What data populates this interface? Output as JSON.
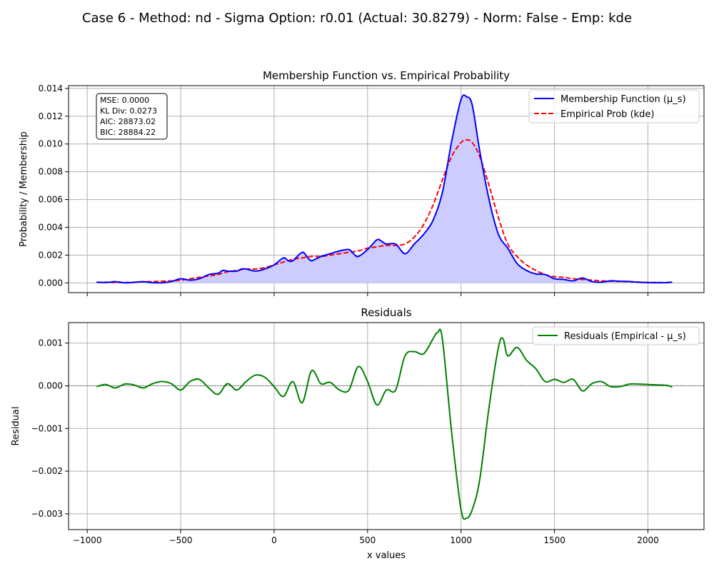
{
  "suptitle": "Case 6 - Method: nd - Sigma Option: r0.01 (Actual: 30.8279) - Norm: False - Emp: kde",
  "colors": {
    "membership": "#0000ff",
    "membership_fill": "#ccccff",
    "empirical": "#ff0000",
    "residuals": "#008000",
    "zero_line": "#808080",
    "grid": "#b0b0b0"
  },
  "chart_data": [
    {
      "type": "line",
      "title": "Membership Function vs. Empirical Probability",
      "xlabel": "",
      "ylabel": "Probability / Membership",
      "xlim": [
        -1100,
        2300
      ],
      "ylim": [
        -0.0007,
        0.0142
      ],
      "xticks": [
        -1000,
        -500,
        0,
        500,
        1000,
        1500,
        2000
      ],
      "yticks": [
        0.0,
        0.002,
        0.004,
        0.006,
        0.008,
        0.01,
        0.012,
        0.014
      ],
      "ytick_labels": [
        "0.000",
        "0.002",
        "0.004",
        "0.006",
        "0.008",
        "0.010",
        "0.012",
        "0.014"
      ],
      "grid": true,
      "legend_position": "top-right",
      "stats": [
        "MSE: 0.0000",
        "KL Div: 0.0273",
        "AIC: 28873.02",
        "BIC: 28884.22"
      ],
      "series": [
        {
          "name": "Membership Function (μ_s)",
          "style": "solid",
          "x": [
            -950,
            -900,
            -850,
            -800,
            -750,
            -700,
            -650,
            -600,
            -550,
            -500,
            -450,
            -400,
            -350,
            -300,
            -275,
            -250,
            -200,
            -175,
            -150,
            -100,
            -50,
            0,
            50,
            75,
            100,
            150,
            175,
            200,
            250,
            300,
            350,
            400,
            425,
            450,
            500,
            550,
            575,
            600,
            650,
            700,
            750,
            800,
            850,
            900,
            950,
            1000,
            1030,
            1060,
            1100,
            1150,
            1200,
            1250,
            1300,
            1350,
            1400,
            1450,
            1500,
            1550,
            1600,
            1650,
            1700,
            1750,
            1800,
            1850,
            1900,
            1950,
            2000,
            2050,
            2100,
            2130
          ],
          "y": [
            5e-05,
            3e-05,
            9e-05,
            1e-05,
            4e-05,
            9e-05,
            2e-05,
            1e-05,
            0.0001,
            0.0003,
            0.0002,
            0.0003,
            0.0006,
            0.0007,
            0.0009,
            0.00085,
            0.00085,
            0.001,
            0.001,
            0.00085,
            0.001,
            0.0013,
            0.0018,
            0.0016,
            0.0016,
            0.0022,
            0.0019,
            0.0016,
            0.0019,
            0.0021,
            0.0023,
            0.0024,
            0.0021,
            0.0019,
            0.0024,
            0.0031,
            0.003,
            0.0028,
            0.0028,
            0.0021,
            0.0028,
            0.0035,
            0.0045,
            0.0065,
            0.0102,
            0.0132,
            0.0134,
            0.0128,
            0.0095,
            0.006,
            0.0035,
            0.0025,
            0.0014,
            0.0009,
            0.00065,
            0.0006,
            0.0003,
            0.00025,
            0.00015,
            0.00035,
            0.0001,
            5e-05,
            0.00015,
            0.00012,
            0.0001,
            5e-05,
            2e-05,
            1e-05,
            2e-05,
            5e-05
          ]
        },
        {
          "name": "Empirical Prob (kde)",
          "style": "dashed",
          "x": [
            -950,
            -900,
            -850,
            -800,
            -750,
            -700,
            -650,
            -600,
            -550,
            -500,
            -450,
            -400,
            -350,
            -300,
            -250,
            -200,
            -150,
            -100,
            -50,
            0,
            50,
            100,
            150,
            200,
            250,
            300,
            350,
            400,
            450,
            500,
            550,
            600,
            650,
            700,
            750,
            800,
            850,
            900,
            950,
            1000,
            1030,
            1060,
            1100,
            1150,
            1200,
            1250,
            1300,
            1350,
            1400,
            1450,
            1500,
            1550,
            1600,
            1650,
            1700,
            1750,
            1800,
            1850,
            1900,
            1950,
            2000,
            2050,
            2100,
            2130
          ],
          "y": [
            3e-05,
            5e-05,
            3e-05,
            3e-05,
            5e-05,
            8e-05,
            0.0001,
            0.00012,
            0.00015,
            0.0002,
            0.0003,
            0.0004,
            0.0005,
            0.0006,
            0.0008,
            0.0009,
            0.001,
            0.001,
            0.0011,
            0.0013,
            0.0015,
            0.0017,
            0.0018,
            0.0019,
            0.0019,
            0.002,
            0.0021,
            0.0022,
            0.0023,
            0.0025,
            0.0026,
            0.0027,
            0.0027,
            0.0028,
            0.0033,
            0.0042,
            0.0056,
            0.0074,
            0.0091,
            0.0101,
            0.0103,
            0.0101,
            0.0091,
            0.007,
            0.0047,
            0.0028,
            0.0019,
            0.0013,
            0.0009,
            0.0006,
            0.00045,
            0.0004,
            0.0003,
            0.00025,
            0.0002,
            0.00015,
            0.00012,
            0.0001,
            8e-05,
            6e-05,
            4e-05,
            3e-05,
            3e-05,
            5e-05
          ]
        }
      ]
    },
    {
      "type": "line",
      "title": "Residuals",
      "xlabel": "x values",
      "ylabel": "Residual",
      "xlim": [
        -1100,
        2300
      ],
      "ylim": [
        -0.00337,
        0.00148
      ],
      "xticks": [
        -1000,
        -500,
        0,
        500,
        1000,
        1500,
        2000
      ],
      "yticks": [
        -0.003,
        -0.002,
        -0.001,
        0.0,
        0.001
      ],
      "ytick_labels": [
        "−0.003",
        "−0.002",
        "−0.001",
        "0.000",
        "0.001"
      ],
      "grid": true,
      "legend_position": "top-right",
      "series": [
        {
          "name": "Residuals (Empirical - μ_s)",
          "style": "solid",
          "x": [
            -950,
            -900,
            -850,
            -800,
            -750,
            -700,
            -650,
            -600,
            -550,
            -500,
            -450,
            -400,
            -350,
            -300,
            -250,
            -200,
            -150,
            -100,
            -50,
            0,
            50,
            100,
            150,
            200,
            250,
            300,
            350,
            400,
            450,
            500,
            550,
            600,
            650,
            700,
            750,
            800,
            850,
            875,
            900,
            950,
            1000,
            1030,
            1060,
            1100,
            1150,
            1200,
            1225,
            1250,
            1300,
            1350,
            1400,
            1450,
            1500,
            1550,
            1600,
            1650,
            1700,
            1750,
            1800,
            1850,
            1900,
            1950,
            2000,
            2050,
            2100,
            2130
          ],
          "y": [
            -2e-05,
            3e-05,
            -5e-05,
            4e-05,
            2e-05,
            -5e-05,
            5e-05,
            0.0001,
            5e-05,
            -0.0001,
            0.0001,
            0.00015,
            -5e-05,
            -0.0002,
            5e-05,
            -0.0001,
            0.0001,
            0.00025,
            0.0002,
            -2e-05,
            -0.00025,
            0.0001,
            -0.0004,
            0.00035,
            5e-05,
            8e-05,
            -0.0001,
            -0.0001,
            0.00045,
            0.0001,
            -0.00045,
            -0.0001,
            -0.0001,
            0.0007,
            0.0008,
            0.00075,
            0.0011,
            0.00125,
            0.0011,
            -0.0011,
            -0.0029,
            -0.0031,
            -0.0029,
            -0.0022,
            -0.0005,
            0.0009,
            0.0011,
            0.0007,
            0.0009,
            0.0006,
            0.0004,
            0.0001,
            0.00015,
            8e-05,
            0.00015,
            -0.00012,
            5e-05,
            0.0001,
            -2e-05,
            -2e-05,
            4e-05,
            4e-05,
            3e-05,
            2e-05,
            1e-05,
            -3e-05
          ]
        }
      ]
    }
  ]
}
